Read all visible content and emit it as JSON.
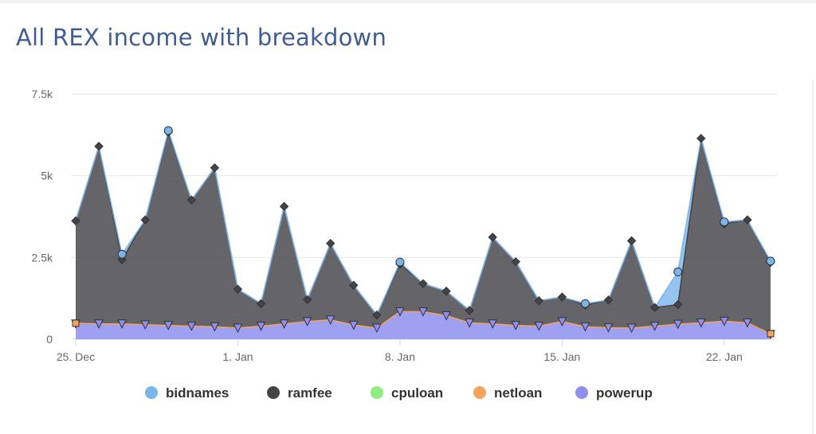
{
  "title": "All REX income with breakdown",
  "chart_data": {
    "type": "area",
    "stacked": true,
    "title": "All REX income with breakdown",
    "x_start": "25. Dec",
    "x_ticks": [
      "25. Dec",
      "1. Jan",
      "8. Jan",
      "15. Jan",
      "22. Jan"
    ],
    "y_ticks": [
      "0",
      "2.5k",
      "5k",
      "7.5k"
    ],
    "y_tick_values": [
      0,
      2500,
      5000,
      7500
    ],
    "ylim": [
      0,
      7500
    ],
    "grid": true,
    "legend_position": "bottom",
    "x": [
      "25. Dec",
      "26. Dec",
      "27. Dec",
      "28. Dec",
      "29. Dec",
      "30. Dec",
      "31. Dec",
      "1. Jan",
      "2. Jan",
      "3. Jan",
      "4. Jan",
      "5. Jan",
      "6. Jan",
      "7. Jan",
      "8. Jan",
      "9. Jan",
      "10. Jan",
      "11. Jan",
      "12. Jan",
      "13. Jan",
      "14. Jan",
      "15. Jan",
      "16. Jan",
      "17. Jan",
      "18. Jan",
      "19. Jan",
      "20. Jan",
      "21. Jan",
      "22. Jan",
      "23. Jan",
      "24. Jan"
    ],
    "series": [
      {
        "name": "powerup",
        "color": "#8f8ff0",
        "values": [
          470,
          470,
          470,
          440,
          420,
          400,
          380,
          340,
          400,
          470,
          540,
          590,
          430,
          340,
          840,
          840,
          720,
          500,
          470,
          420,
          400,
          540,
          380,
          350,
          340,
          400,
          460,
          500,
          550,
          500,
          150
        ]
      },
      {
        "name": "netloan",
        "color": "#f7a35c",
        "values": [
          20,
          0,
          0,
          0,
          0,
          0,
          0,
          0,
          0,
          0,
          0,
          0,
          0,
          0,
          0,
          0,
          0,
          0,
          0,
          0,
          0,
          0,
          0,
          0,
          0,
          0,
          0,
          0,
          0,
          0,
          20
        ]
      },
      {
        "name": "cpuloan",
        "color": "#90ed7d",
        "values": [
          0,
          0,
          0,
          0,
          0,
          0,
          0,
          0,
          0,
          0,
          0,
          0,
          0,
          0,
          0,
          0,
          0,
          0,
          0,
          0,
          0,
          0,
          0,
          0,
          0,
          0,
          0,
          0,
          0,
          0,
          0
        ]
      },
      {
        "name": "ramfee",
        "color": "#434348",
        "values": [
          3130,
          5430,
          1960,
          3210,
          5910,
          3860,
          4860,
          1190,
          690,
          3590,
          670,
          2340,
          1220,
          400,
          1460,
          860,
          750,
          380,
          2650,
          1950,
          780,
          750,
          660,
          850,
          2670,
          570,
          600,
          5640,
          2980,
          3150,
          2180
        ]
      },
      {
        "name": "bidnames",
        "color": "#7cb5ec",
        "values": [
          0,
          0,
          170,
          0,
          50,
          0,
          0,
          0,
          0,
          0,
          0,
          0,
          0,
          0,
          60,
          0,
          0,
          0,
          0,
          0,
          0,
          0,
          50,
          0,
          0,
          0,
          1000,
          0,
          60,
          0,
          40
        ]
      }
    ],
    "legend": [
      "bidnames",
      "ramfee",
      "cpuloan",
      "netloan",
      "powerup"
    ]
  }
}
